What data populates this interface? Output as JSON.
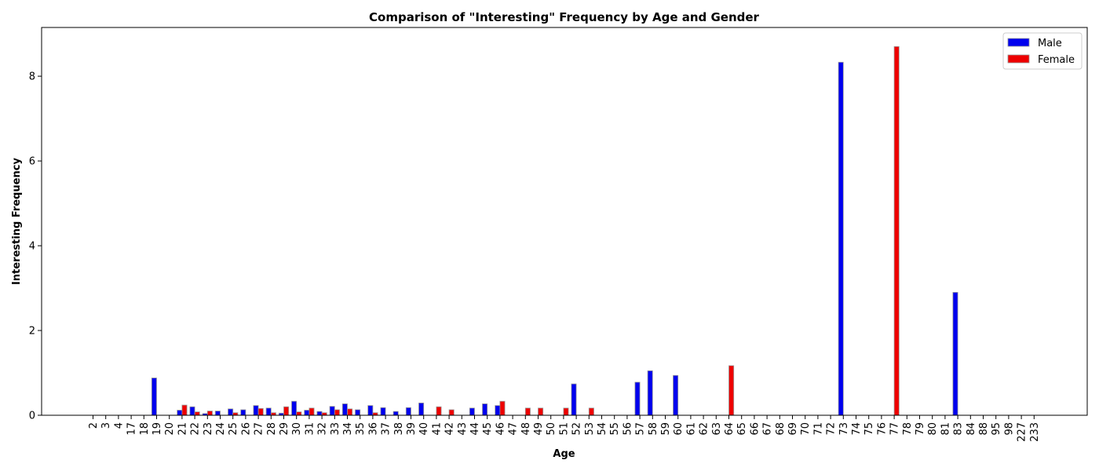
{
  "chart_data": {
    "type": "bar",
    "title": "Comparison of \"Interesting\" Frequency by Age and Gender",
    "xlabel": "Age",
    "ylabel": "Interesting Frequency",
    "ylim": [
      0,
      9.15
    ],
    "yticks": [
      0,
      2,
      4,
      6,
      8
    ],
    "grid": false,
    "legend_position": "top-right",
    "categories": [
      "2",
      "3",
      "4",
      "17",
      "18",
      "19",
      "20",
      "21",
      "22",
      "23",
      "24",
      "25",
      "26",
      "27",
      "28",
      "29",
      "30",
      "31",
      "32",
      "33",
      "34",
      "35",
      "36",
      "37",
      "38",
      "39",
      "40",
      "41",
      "42",
      "43",
      "44",
      "45",
      "46",
      "47",
      "48",
      "49",
      "50",
      "51",
      "52",
      "53",
      "54",
      "55",
      "56",
      "57",
      "58",
      "59",
      "60",
      "61",
      "62",
      "63",
      "64",
      "65",
      "66",
      "67",
      "68",
      "69",
      "70",
      "71",
      "72",
      "73",
      "74",
      "75",
      "76",
      "77",
      "78",
      "79",
      "80",
      "81",
      "83",
      "84",
      "88",
      "95",
      "98",
      "227",
      "233"
    ],
    "series": [
      {
        "name": "Male",
        "color": "#0000ee",
        "values": [
          0,
          0,
          0,
          0,
          0,
          0.88,
          0,
          0.12,
          0.2,
          0.04,
          0.1,
          0.15,
          0.13,
          0.23,
          0.17,
          0.05,
          0.33,
          0.12,
          0.09,
          0.21,
          0.27,
          0.13,
          0.23,
          0.18,
          0.09,
          0.18,
          0.29,
          0,
          0,
          0,
          0.17,
          0.27,
          0.23,
          0,
          0,
          0,
          0,
          0,
          0.74,
          0,
          0,
          0,
          0,
          0.78,
          1.05,
          0,
          0.94,
          0,
          0,
          0,
          0,
          0,
          0,
          0,
          0,
          0,
          0,
          0,
          0,
          8.33,
          0,
          0,
          0,
          0,
          0,
          0,
          0,
          0,
          2.9,
          0,
          0,
          0,
          0,
          0,
          0
        ]
      },
      {
        "name": "Female",
        "color": "#ee0000",
        "values": [
          0,
          0,
          0,
          0,
          0,
          0,
          0,
          0.24,
          0.08,
          0.1,
          0,
          0.06,
          0,
          0.16,
          0.06,
          0.2,
          0.08,
          0.17,
          0.06,
          0.13,
          0.15,
          0,
          0.06,
          0,
          0,
          0,
          0,
          0.2,
          0.13,
          0,
          0,
          0,
          0.33,
          0,
          0.17,
          0.17,
          0,
          0.17,
          0,
          0.17,
          0,
          0,
          0,
          0,
          0,
          0,
          0,
          0,
          0,
          0,
          1.17,
          0,
          0,
          0,
          0,
          0,
          0,
          0,
          0,
          0,
          0,
          0,
          0,
          8.7,
          0,
          0,
          0,
          0,
          0,
          0,
          0,
          0,
          0,
          0,
          0
        ]
      }
    ]
  }
}
